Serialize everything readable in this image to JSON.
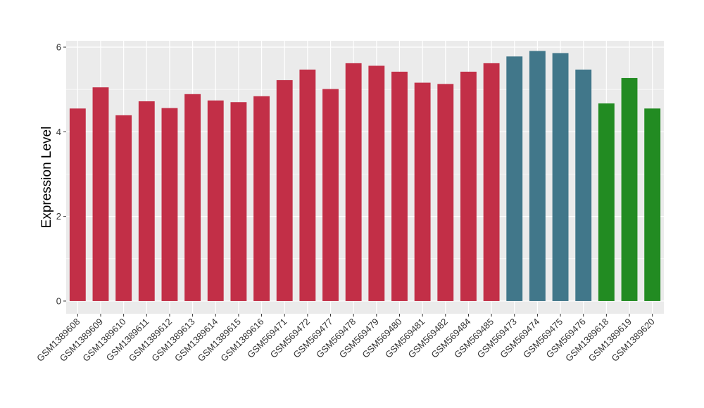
{
  "chart_data": {
    "type": "bar",
    "title": "",
    "xlabel": "",
    "ylabel": "Expression Level",
    "ylim": [
      -0.3,
      6.15
    ],
    "yticks": [
      0,
      2,
      4,
      6
    ],
    "ytick_labels": [
      "0",
      "2",
      "4",
      "6"
    ],
    "grid": true,
    "legend": "none",
    "categories": [
      "GSM1389608",
      "GSM1389609",
      "GSM1389610",
      "GSM1389611",
      "GSM1389612",
      "GSM1389613",
      "GSM1389614",
      "GSM1389615",
      "GSM1389616",
      "GSM569471",
      "GSM569472",
      "GSM569477",
      "GSM569478",
      "GSM569479",
      "GSM569480",
      "GSM569481",
      "GSM569482",
      "GSM569484",
      "GSM569485",
      "GSM569473",
      "GSM569474",
      "GSM569475",
      "GSM569476",
      "GSM1389618",
      "GSM1389619",
      "GSM1389620"
    ],
    "values": [
      4.55,
      5.05,
      4.39,
      4.72,
      4.56,
      4.89,
      4.74,
      4.7,
      4.84,
      5.22,
      5.47,
      5.01,
      5.62,
      5.56,
      5.42,
      5.16,
      5.13,
      5.42,
      5.62,
      5.78,
      5.91,
      5.86,
      5.47,
      4.67,
      5.27,
      4.55
    ],
    "bar_colors": [
      "#C22F47",
      "#C22F47",
      "#C22F47",
      "#C22F47",
      "#C22F47",
      "#C22F47",
      "#C22F47",
      "#C22F47",
      "#C22F47",
      "#C22F47",
      "#C22F47",
      "#C22F47",
      "#C22F47",
      "#C22F47",
      "#C22F47",
      "#C22F47",
      "#C22F47",
      "#C22F47",
      "#C22F47",
      "#41778A",
      "#41778A",
      "#41778A",
      "#41778A",
      "#228B22",
      "#228B22",
      "#228B22"
    ],
    "panel_background": "#EBEBEB",
    "gridline_color": "#FFFFFF"
  }
}
